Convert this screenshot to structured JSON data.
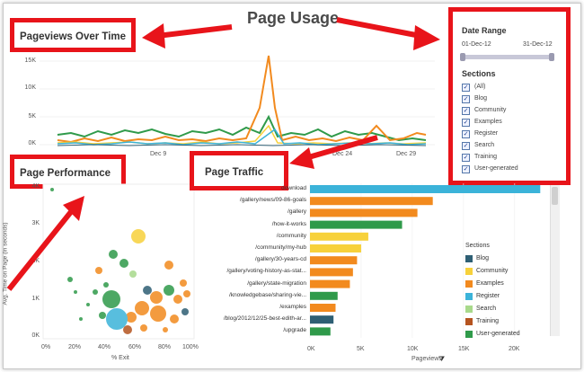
{
  "title": "Page Usage",
  "pageviews_over_time": {
    "label": "Pageviews Over Time",
    "y_ticks": [
      "15K",
      "10K",
      "5K",
      "0K"
    ],
    "x_ticks": [
      "Dec 9",
      "Dec 24",
      "Dec 29"
    ]
  },
  "date_range": {
    "label": "Date Range",
    "start": "01-Dec-12",
    "end": "31-Dec-12"
  },
  "sections_filter": {
    "label": "Sections",
    "items": [
      "(All)",
      "Blog",
      "Community",
      "Examples",
      "Register",
      "Search",
      "Training",
      "User-generated"
    ]
  },
  "page_performance": {
    "label": "Page Performance",
    "y_axis_label": "Avg. Time on Page (in seconds)",
    "y_ticks": [
      "4K",
      "3K",
      "2K",
      "1K",
      "0K"
    ],
    "x_ticks": [
      "0%",
      "20%",
      "40%",
      "60%",
      "80%",
      "100%"
    ],
    "x_axis_label": "% Exit"
  },
  "page_traffic": {
    "label": "Page Traffic",
    "rows": [
      {
        "label": "download",
        "value": 22500,
        "section": "Register"
      },
      {
        "label": "/gallery/news/09-86-goals",
        "value": 12000,
        "section": "Examples"
      },
      {
        "label": "/gallery",
        "value": 10500,
        "section": "Examples"
      },
      {
        "label": "/how-it-works",
        "value": 9000,
        "section": "User-generated"
      },
      {
        "label": "/community",
        "value": 5700,
        "section": "Community"
      },
      {
        "label": "/community/my-hub",
        "value": 5000,
        "section": "Community"
      },
      {
        "label": "/gallery/30-years-cd",
        "value": 4600,
        "section": "Examples"
      },
      {
        "label": "/gallery/voting-history-as-stat...",
        "value": 4200,
        "section": "Examples"
      },
      {
        "label": "/gallery/state-migration",
        "value": 3900,
        "section": "Examples"
      },
      {
        "label": "/knowledgebase/sharing-vie...",
        "value": 2700,
        "section": "User-generated"
      },
      {
        "label": "/examples",
        "value": 2500,
        "section": "Examples"
      },
      {
        "label": "/blog/2012/12/25-best-edith-ar...",
        "value": 2300,
        "section": "Blog"
      },
      {
        "label": "/upgrade",
        "value": 2000,
        "section": "User-generated"
      }
    ],
    "x_ticks": [
      "0K",
      "5K",
      "10K",
      "15K",
      "20K"
    ],
    "x_axis_label": "Pageviews",
    "legend_title": "Sections",
    "legend": [
      {
        "name": "Blog",
        "color": "#2e5f74"
      },
      {
        "name": "Community",
        "color": "#f7d13b"
      },
      {
        "name": "Examples",
        "color": "#f28a1e"
      },
      {
        "name": "Register",
        "color": "#3bb3d9"
      },
      {
        "name": "Search",
        "color": "#a8d98b"
      },
      {
        "name": "Training",
        "color": "#b5541f"
      },
      {
        "name": "User-generated",
        "color": "#2f9a4a"
      }
    ]
  },
  "colors": {
    "annotation": "#e8141a",
    "blog": "#2e5f74",
    "community": "#f7d13b",
    "examples": "#f28a1e",
    "register": "#3bb3d9",
    "search": "#a8d98b",
    "training": "#b5541f",
    "user_generated": "#2f9a4a"
  }
}
